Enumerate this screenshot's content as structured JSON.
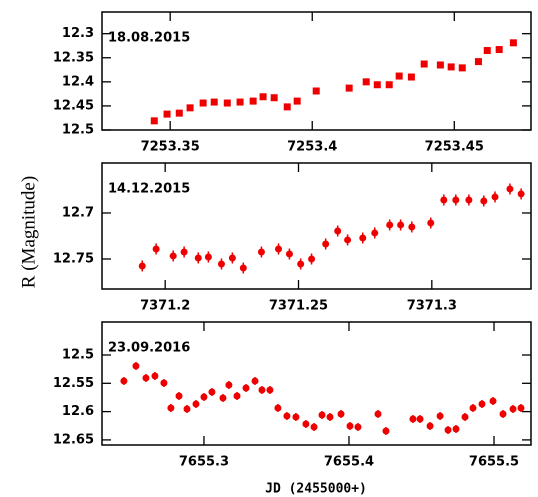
{
  "chart_data": [
    {
      "type": "scatter",
      "marker": "square",
      "color": "#ee0000",
      "annotation": "18.08.2015",
      "x": [
        7253.3444,
        7253.3489,
        7253.3532,
        7253.357,
        7253.3616,
        7253.3655,
        7253.3701,
        7253.3746,
        7253.3792,
        7253.3827,
        7253.3866,
        7253.3912,
        7253.3947,
        7253.4014,
        7253.413,
        7253.419,
        7253.4229,
        7253.4271,
        7253.4306,
        7253.4349,
        7253.4394,
        7253.4451,
        7253.4489,
        7253.4528,
        7253.4585,
        7253.4616,
        7253.4658,
        7253.4708
      ],
      "values": [
        12.481,
        12.467,
        12.465,
        12.454,
        12.444,
        12.442,
        12.444,
        12.442,
        12.44,
        12.431,
        12.433,
        12.452,
        12.44,
        12.419,
        12.413,
        12.4,
        12.406,
        12.406,
        12.388,
        12.39,
        12.363,
        12.365,
        12.369,
        12.371,
        12.358,
        12.335,
        12.333,
        12.319
      ],
      "xlim": [
        7253.326,
        7253.477
      ],
      "ylim": [
        12.5,
        12.255
      ],
      "xticks": [
        7253.35,
        7253.4,
        7253.45
      ],
      "yticks": [
        12.3,
        12.35,
        12.4,
        12.45,
        12.5
      ]
    },
    {
      "type": "scatter",
      "marker": "circle",
      "color": "#ee0000",
      "annotation": "14.12.2015",
      "x": [
        7371.1914,
        7371.1966,
        7371.203,
        7371.2071,
        7371.2124,
        7371.2162,
        7371.2211,
        7371.2252,
        7371.2293,
        7371.2361,
        7371.2425,
        7371.2466,
        7371.2508,
        7371.2549,
        7371.2602,
        7371.2647,
        7371.2684,
        7371.2741,
        7371.2786,
        7371.2842,
        7371.2883,
        7371.2925,
        7371.2996,
        7371.3045,
        7371.309,
        7371.3139,
        7371.3195,
        7371.3237,
        7371.3293,
        7371.3335
      ],
      "values": [
        12.7576,
        12.7391,
        12.7467,
        12.7424,
        12.7489,
        12.7478,
        12.7554,
        12.7489,
        12.7598,
        12.7424,
        12.7391,
        12.7446,
        12.7554,
        12.75,
        12.7337,
        12.7196,
        12.7293,
        12.7272,
        12.7217,
        12.713,
        12.713,
        12.7152,
        12.7109,
        12.6859,
        12.6859,
        12.6859,
        12.687,
        12.6826,
        12.6739,
        12.6793
      ],
      "errors": [
        0.006,
        0.006,
        0.006,
        0.006,
        0.006,
        0.006,
        0.006,
        0.006,
        0.006,
        0.006,
        0.006,
        0.006,
        0.006,
        0.006,
        0.006,
        0.006,
        0.006,
        0.006,
        0.006,
        0.006,
        0.006,
        0.006,
        0.006,
        0.006,
        0.006,
        0.006,
        0.006,
        0.006,
        0.006,
        0.006
      ],
      "xlim": [
        7371.1763,
        7371.3372
      ],
      "ylim": [
        12.7826,
        12.6457
      ],
      "xticks": [
        7371.2,
        7371.25,
        7371.3
      ],
      "yticks": [
        12.7,
        12.75
      ]
    },
    {
      "type": "scatter",
      "marker": "circle",
      "color": "#ee0000",
      "annotation": "23.09.2016",
      "x": [
        7655.2448,
        7655.2531,
        7655.26,
        7655.2662,
        7655.2724,
        7655.2772,
        7655.2828,
        7655.2883,
        7655.2945,
        7655.3,
        7655.3055,
        7655.3131,
        7655.3172,
        7655.3228,
        7655.329,
        7655.3352,
        7655.34,
        7655.3455,
        7655.351,
        7655.3572,
        7655.3634,
        7655.3703,
        7655.3759,
        7655.3814,
        7655.3869,
        7655.3945,
        7655.4007,
        7655.4062,
        7655.42,
        7655.4255,
        7655.4441,
        7655.449,
        7655.4559,
        7655.4628,
        7655.4683,
        7655.4738,
        7655.48,
        7655.4855,
        7655.4917,
        7655.4993,
        7655.5062,
        7655.5131,
        7655.5186
      ],
      "values": [
        12.5459,
        12.5194,
        12.5406,
        12.5371,
        12.5495,
        12.5936,
        12.5724,
        12.5954,
        12.5866,
        12.5742,
        12.5654,
        12.576,
        12.553,
        12.5724,
        12.5583,
        12.5459,
        12.5618,
        12.5618,
        12.5936,
        12.6078,
        12.6095,
        12.6219,
        12.6272,
        12.606,
        12.6095,
        12.6042,
        12.6254,
        12.6272,
        12.6042,
        12.6343,
        12.6131,
        12.6131,
        12.6254,
        12.6078,
        12.6325,
        12.6307,
        12.6095,
        12.5936,
        12.5866,
        12.5813,
        12.6042,
        12.5954,
        12.5936
      ],
      "errors": [
        0.007,
        0.007,
        0.007,
        0.007,
        0.007,
        0.007,
        0.007,
        0.007,
        0.007,
        0.007,
        0.007,
        0.007,
        0.007,
        0.007,
        0.007,
        0.007,
        0.007,
        0.007,
        0.007,
        0.007,
        0.007,
        0.007,
        0.007,
        0.007,
        0.007,
        0.007,
        0.007,
        0.007,
        0.007,
        0.007,
        0.007,
        0.007,
        0.007,
        0.007,
        0.007,
        0.007,
        0.007,
        0.007,
        0.007,
        0.007,
        0.007,
        0.007,
        0.007
      ],
      "xlim": [
        7655.2297,
        7655.5255
      ],
      "ylim": [
        12.659,
        12.4417
      ],
      "xticks": [
        7655.3,
        7655.4,
        7655.5
      ],
      "yticks": [
        12.5,
        12.55,
        12.6,
        12.65
      ]
    }
  ],
  "ylabel": "R (Magnitude)",
  "xlabel": "JD (2455000+)"
}
